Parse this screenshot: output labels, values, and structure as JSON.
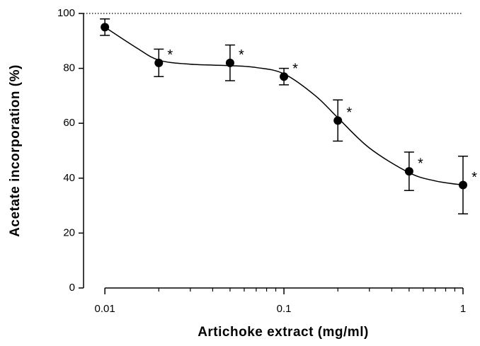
{
  "chart_data": {
    "type": "scatter",
    "x_label": "Artichoke extract (mg/ml)",
    "y_label": "Acetate incorporation (%)",
    "x_scale": "log",
    "xlim": [
      0.0076,
      1
    ],
    "ylim": [
      0,
      100
    ],
    "xticks": [
      0.01,
      0.1,
      1
    ],
    "xminor_ticks": [
      0.02,
      0.03,
      0.04,
      0.05,
      0.06,
      0.07,
      0.08,
      0.09,
      0.2,
      0.3,
      0.4,
      0.5,
      0.6,
      0.7,
      0.8,
      0.9
    ],
    "yticks": [
      0,
      20,
      40,
      60,
      80,
      100
    ],
    "reference_line": 100,
    "color": "#000000",
    "x": [
      0.01,
      0.02,
      0.05,
      0.1,
      0.2,
      0.5,
      1
    ],
    "values": [
      95,
      82,
      82,
      77,
      61,
      42.5,
      37.5
    ],
    "errors": [
      3,
      5,
      6.5,
      3,
      7.5,
      7,
      10.5
    ],
    "fit": {
      "x": [
        0.01,
        0.015,
        0.02,
        0.03,
        0.05,
        0.07,
        0.1,
        0.15,
        0.2,
        0.3,
        0.5,
        0.7,
        1
      ],
      "values": [
        95,
        87.5,
        83,
        81.5,
        81,
        80.3,
        78,
        70,
        62,
        51,
        42,
        39,
        37.5
      ]
    },
    "annotations": [
      {
        "text": "*",
        "x": 0.02
      },
      {
        "text": "*",
        "x": 0.05
      },
      {
        "text": "*",
        "x": 0.1
      },
      {
        "text": "*",
        "x": 0.2
      },
      {
        "text": "*",
        "x": 0.5
      },
      {
        "text": "*",
        "x": 1
      }
    ]
  }
}
